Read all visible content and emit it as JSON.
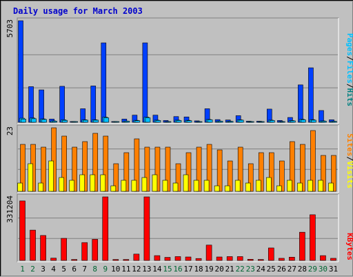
{
  "title": "Daily usage for March 2003",
  "colors": {
    "hits": "#0040ff",
    "files": "#00c0ff",
    "pages": "#00c0ff",
    "visits": "#ff8000",
    "sites": "#ffff00",
    "kbytes": "#ff0000",
    "weekend_label": "#006633",
    "weekday_label": "#000000"
  },
  "chart_data": [
    {
      "type": "bar",
      "name": "hits-files-pages",
      "categories": [
        "1",
        "2",
        "3",
        "4",
        "5",
        "6",
        "7",
        "8",
        "9",
        "10",
        "11",
        "12",
        "13",
        "14",
        "15",
        "16",
        "17",
        "18",
        "19",
        "20",
        "21",
        "22",
        "23",
        "24",
        "25",
        "26",
        "27",
        "28",
        "29",
        "30",
        "31"
      ],
      "ymax_label": "5703",
      "ylim": [
        0,
        5703
      ],
      "legend": [
        "Pages",
        "/",
        "Files",
        "/",
        "Hits"
      ],
      "series": [
        {
          "name": "Hits",
          "values": [
            5703,
            2000,
            1820,
            180,
            2020,
            40,
            760,
            2040,
            4460,
            40,
            180,
            400,
            4460,
            400,
            100,
            320,
            300,
            80,
            760,
            150,
            130,
            370,
            60,
            60,
            740,
            100,
            270,
            2100,
            3060,
            660,
            140
          ]
        },
        {
          "name": "Files",
          "values": [
            230,
            240,
            190,
            80,
            140,
            20,
            140,
            140,
            290,
            20,
            70,
            110,
            290,
            120,
            40,
            120,
            110,
            20,
            160,
            70,
            60,
            140,
            20,
            20,
            120,
            50,
            100,
            170,
            150,
            80,
            60
          ]
        },
        {
          "name": "Pages",
          "values": [
            180,
            200,
            160,
            60,
            110,
            15,
            120,
            120,
            250,
            15,
            60,
            90,
            250,
            100,
            30,
            100,
            90,
            15,
            140,
            60,
            50,
            120,
            15,
            15,
            100,
            40,
            80,
            140,
            120,
            60,
            50
          ]
        }
      ]
    },
    {
      "type": "bar",
      "name": "visits-sites",
      "ymax_label": "23",
      "ylim": [
        0,
        23
      ],
      "legend": [
        "Sites",
        "/",
        "Visits"
      ],
      "series": [
        {
          "name": "Visits",
          "values": [
            17,
            17,
            16,
            23,
            20,
            16,
            18,
            21,
            20,
            10,
            14,
            19,
            16,
            16,
            16,
            10,
            14,
            16,
            17,
            15,
            11,
            16,
            10,
            14,
            14,
            11,
            18,
            17,
            22,
            13,
            13
          ]
        },
        {
          "name": "Sites",
          "values": [
            3,
            10,
            3,
            11,
            5,
            4,
            6,
            6,
            6,
            2,
            4,
            4,
            5,
            6,
            4,
            3,
            6,
            4,
            4,
            2,
            2,
            4,
            3,
            4,
            5,
            2,
            4,
            3,
            4,
            4,
            3
          ]
        }
      ]
    },
    {
      "type": "bar",
      "name": "kbytes",
      "ymax_label": "331204",
      "ylim": [
        0,
        331204
      ],
      "legend": [
        "KBytes"
      ],
      "series": [
        {
          "name": "KBytes",
          "values": [
            310000,
            158000,
            130000,
            12000,
            115000,
            5000,
            93000,
            110000,
            331204,
            5000,
            5000,
            33000,
            331204,
            25000,
            16000,
            20000,
            18000,
            10000,
            80000,
            18000,
            20000,
            20000,
            6000,
            5000,
            65000,
            11000,
            17000,
            147000,
            238000,
            25000,
            11000
          ]
        }
      ]
    }
  ],
  "x_labels": [
    "1",
    "2",
    "3",
    "4",
    "5",
    "6",
    "7",
    "8",
    "9",
    "10",
    "11",
    "12",
    "13",
    "14",
    "15",
    "16",
    "17",
    "18",
    "19",
    "20",
    "21",
    "22",
    "23",
    "24",
    "25",
    "26",
    "27",
    "28",
    "29",
    "30",
    "31"
  ],
  "weekend_days": [
    1,
    2,
    8,
    9,
    15,
    16,
    22,
    23,
    29,
    30
  ]
}
